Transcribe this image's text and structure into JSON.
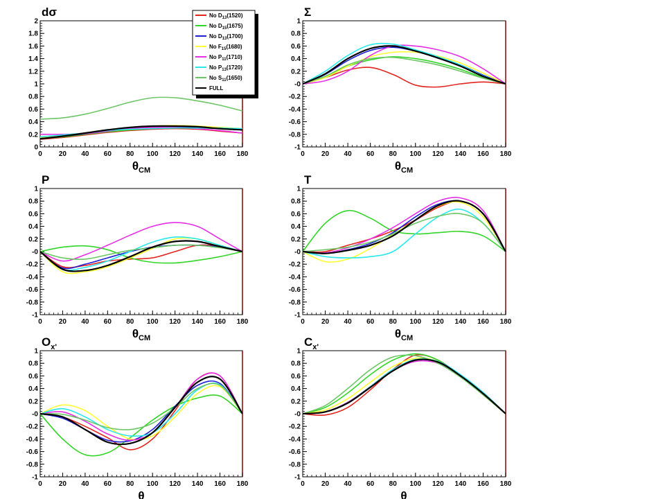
{
  "figure": {
    "background": "#ffffff"
  },
  "legend": {
    "entries": [
      {
        "label": "No D13(1520)",
        "color": "#e3231c"
      },
      {
        "label": "No D15(1675)",
        "color": "#31d626"
      },
      {
        "label": "No D13(1700)",
        "color": "#1f1fd6"
      },
      {
        "label": "No F15(1680)",
        "color": "#ffff33"
      },
      {
        "label": "No P11(1710)",
        "color": "#e52ee5"
      },
      {
        "label": "No P13(1720)",
        "color": "#29e8ec"
      },
      {
        "label": "No S11(1650)",
        "color": "#6cc665"
      },
      {
        "label": "FULL",
        "color": "#000000"
      }
    ]
  },
  "chart_data": [
    {
      "type": "line",
      "panel": "dsigma",
      "title": "dσ",
      "xlabel": "θCM",
      "ylabel": "",
      "xlim": [
        0,
        180
      ],
      "ylim": [
        0,
        2
      ],
      "xticks": [
        "0",
        "20",
        "40",
        "60",
        "80",
        "100",
        "120",
        "140",
        "160",
        "180"
      ],
      "yticks": [
        "0",
        "0.2",
        "0.4",
        "0.6",
        "0.8",
        "1",
        "1.2",
        "1.4",
        "1.6",
        "1.8",
        "2"
      ],
      "x": [
        0,
        20,
        40,
        60,
        80,
        100,
        120,
        140,
        160,
        180
      ],
      "series": [
        {
          "name": "No D13(1520)",
          "values": [
            0.12,
            0.15,
            0.19,
            0.23,
            0.26,
            0.28,
            0.29,
            0.28,
            0.25,
            0.22
          ]
        },
        {
          "name": "No D15(1675)",
          "values": [
            0.13,
            0.16,
            0.2,
            0.24,
            0.27,
            0.29,
            0.3,
            0.3,
            0.29,
            0.27
          ]
        },
        {
          "name": "No D13(1700)",
          "values": [
            0.14,
            0.17,
            0.21,
            0.26,
            0.3,
            0.32,
            0.32,
            0.31,
            0.29,
            0.27
          ]
        },
        {
          "name": "No F15(1680)",
          "values": [
            0.15,
            0.18,
            0.22,
            0.27,
            0.31,
            0.33,
            0.34,
            0.33,
            0.31,
            0.29
          ]
        },
        {
          "name": "No P11(1710)",
          "values": [
            0.2,
            0.2,
            0.21,
            0.25,
            0.29,
            0.31,
            0.31,
            0.29,
            0.26,
            0.22
          ]
        },
        {
          "name": "No P13(1720)",
          "values": [
            0.16,
            0.19,
            0.22,
            0.26,
            0.28,
            0.29,
            0.3,
            0.3,
            0.3,
            0.29
          ]
        },
        {
          "name": "No S11(1650)",
          "values": [
            0.44,
            0.46,
            0.52,
            0.61,
            0.71,
            0.78,
            0.78,
            0.73,
            0.66,
            0.57
          ]
        },
        {
          "name": "FULL",
          "values": [
            0.13,
            0.17,
            0.22,
            0.27,
            0.31,
            0.33,
            0.33,
            0.32,
            0.29,
            0.27
          ]
        }
      ]
    },
    {
      "type": "line",
      "panel": "sigma",
      "title": "Σ",
      "xlabel": "θCM",
      "ylabel": "",
      "xlim": [
        0,
        180
      ],
      "ylim": [
        -1,
        1
      ],
      "xticks": [
        "0",
        "20",
        "40",
        "60",
        "80",
        "100",
        "120",
        "140",
        "160",
        "180"
      ],
      "yticks": [
        "-1",
        "-0.8",
        "-0.6",
        "-0.4",
        "-0.2",
        "-0",
        "0.2",
        "0.4",
        "0.6",
        "0.8",
        "1"
      ],
      "x": [
        0,
        20,
        40,
        60,
        80,
        100,
        120,
        140,
        160,
        180
      ],
      "series": [
        {
          "name": "No D13(1520)",
          "values": [
            0,
            0.1,
            0.22,
            0.26,
            0.15,
            -0.02,
            -0.05,
            0.0,
            0.03,
            0
          ]
        },
        {
          "name": "No D15(1675)",
          "values": [
            0,
            0.12,
            0.28,
            0.38,
            0.43,
            0.4,
            0.33,
            0.23,
            0.1,
            0
          ]
        },
        {
          "name": "No D13(1700)",
          "values": [
            0,
            0.15,
            0.37,
            0.53,
            0.58,
            0.52,
            0.42,
            0.3,
            0.14,
            0
          ]
        },
        {
          "name": "No F15(1680)",
          "values": [
            0,
            0.1,
            0.28,
            0.43,
            0.5,
            0.5,
            0.44,
            0.33,
            0.17,
            0
          ]
        },
        {
          "name": "No P11(1710)",
          "values": [
            0,
            0.05,
            0.2,
            0.45,
            0.6,
            0.6,
            0.54,
            0.43,
            0.24,
            0
          ]
        },
        {
          "name": "No P13(1720)",
          "values": [
            0,
            0.2,
            0.45,
            0.62,
            0.63,
            0.54,
            0.43,
            0.3,
            0.13,
            0
          ]
        },
        {
          "name": "No S11(1650)",
          "values": [
            0,
            0.12,
            0.3,
            0.4,
            0.42,
            0.37,
            0.3,
            0.2,
            0.09,
            0
          ]
        },
        {
          "name": "FULL",
          "values": [
            0,
            0.16,
            0.4,
            0.56,
            0.6,
            0.52,
            0.41,
            0.28,
            0.12,
            0
          ]
        }
      ]
    },
    {
      "type": "line",
      "panel": "P",
      "title": "P",
      "xlabel": "θCM",
      "ylabel": "",
      "xlim": [
        0,
        180
      ],
      "ylim": [
        -1,
        1
      ],
      "xticks": [
        "0",
        "20",
        "40",
        "60",
        "80",
        "100",
        "120",
        "140",
        "160",
        "180"
      ],
      "yticks": [
        "-1",
        "-0.8",
        "-0.6",
        "-0.4",
        "-0.2",
        "-0",
        "0.2",
        "0.4",
        "0.6",
        "0.8",
        "1"
      ],
      "x": [
        0,
        20,
        40,
        60,
        80,
        100,
        120,
        140,
        160,
        180
      ],
      "series": [
        {
          "name": "No D13(1520)",
          "values": [
            0,
            -0.24,
            -0.22,
            -0.15,
            -0.12,
            -0.1,
            0.0,
            0.1,
            0.08,
            0
          ]
        },
        {
          "name": "No D15(1675)",
          "values": [
            0,
            0.07,
            0.09,
            0.03,
            -0.1,
            -0.17,
            -0.18,
            -0.14,
            -0.08,
            0
          ]
        },
        {
          "name": "No D13(1700)",
          "values": [
            0,
            -0.26,
            -0.2,
            -0.1,
            0.0,
            0.07,
            0.1,
            0.1,
            0.07,
            0
          ]
        },
        {
          "name": "No F15(1680)",
          "values": [
            0,
            -0.32,
            -0.32,
            -0.24,
            -0.1,
            0.05,
            0.2,
            0.2,
            0.1,
            0
          ]
        },
        {
          "name": "No P11(1710)",
          "values": [
            0,
            -0.15,
            -0.05,
            0.1,
            0.26,
            0.4,
            0.46,
            0.4,
            0.2,
            0
          ]
        },
        {
          "name": "No P13(1720)",
          "values": [
            0,
            -0.28,
            -0.25,
            -0.15,
            0.0,
            0.15,
            0.23,
            0.2,
            0.1,
            0
          ]
        },
        {
          "name": "No S11(1650)",
          "values": [
            0,
            -0.1,
            -0.12,
            -0.05,
            0.02,
            0.06,
            0.1,
            0.1,
            0.06,
            0
          ]
        },
        {
          "name": "FULL",
          "values": [
            0,
            -0.28,
            -0.3,
            -0.22,
            -0.08,
            0.07,
            0.16,
            0.16,
            0.08,
            0
          ]
        }
      ]
    },
    {
      "type": "line",
      "panel": "T",
      "title": "T",
      "xlabel": "θCM",
      "ylabel": "",
      "xlim": [
        0,
        180
      ],
      "ylim": [
        -1,
        1
      ],
      "xticks": [
        "0",
        "20",
        "40",
        "60",
        "80",
        "100",
        "120",
        "140",
        "160",
        "180"
      ],
      "yticks": [
        "-1",
        "-0.8",
        "-0.6",
        "-0.4",
        "-0.2",
        "-0",
        "0.2",
        "0.4",
        "0.6",
        "0.8",
        "1"
      ],
      "x": [
        0,
        20,
        40,
        60,
        80,
        100,
        120,
        140,
        160,
        180
      ],
      "series": [
        {
          "name": "No D13(1520)",
          "values": [
            0,
            0.0,
            0.1,
            0.2,
            0.33,
            0.5,
            0.7,
            0.8,
            0.6,
            0
          ]
        },
        {
          "name": "No D15(1675)",
          "values": [
            0,
            0.45,
            0.65,
            0.53,
            0.33,
            0.28,
            0.3,
            0.32,
            0.25,
            0
          ]
        },
        {
          "name": "No D13(1700)",
          "values": [
            0,
            -0.03,
            0.03,
            0.13,
            0.3,
            0.55,
            0.75,
            0.8,
            0.6,
            0
          ]
        },
        {
          "name": "No F15(1680)",
          "values": [
            0,
            -0.16,
            -0.12,
            0.05,
            0.27,
            0.5,
            0.72,
            0.78,
            0.55,
            0
          ]
        },
        {
          "name": "No P11(1710)",
          "values": [
            0,
            -0.02,
            0.06,
            0.2,
            0.38,
            0.6,
            0.8,
            0.85,
            0.65,
            0
          ]
        },
        {
          "name": "No P13(1720)",
          "values": [
            0,
            -0.08,
            -0.1,
            -0.08,
            0.0,
            0.28,
            0.55,
            0.67,
            0.45,
            0
          ]
        },
        {
          "name": "No S11(1650)",
          "values": [
            0,
            0.03,
            0.07,
            0.15,
            0.28,
            0.45,
            0.56,
            0.6,
            0.45,
            0
          ]
        },
        {
          "name": "FULL",
          "values": [
            0,
            -0.03,
            0.02,
            0.1,
            0.25,
            0.5,
            0.73,
            0.8,
            0.6,
            0
          ]
        }
      ]
    },
    {
      "type": "line",
      "panel": "Ox",
      "title": "Ox'",
      "xlabel": "θ",
      "ylabel": "",
      "xlim": [
        0,
        180
      ],
      "ylim": [
        -1,
        1
      ],
      "xticks": [
        "0",
        "20",
        "40",
        "60",
        "80",
        "100",
        "120",
        "140",
        "160",
        "180"
      ],
      "yticks": [
        "-1",
        "-0.8",
        "-0.6",
        "-0.4",
        "-0.2",
        "-0",
        "0.2",
        "0.4",
        "0.6",
        "0.8",
        "1"
      ],
      "x": [
        0,
        20,
        40,
        60,
        80,
        100,
        120,
        140,
        160,
        180
      ],
      "series": [
        {
          "name": "No D13(1520)",
          "values": [
            0,
            -0.05,
            -0.2,
            -0.38,
            -0.57,
            -0.4,
            0.05,
            0.55,
            0.6,
            0
          ]
        },
        {
          "name": "No D15(1675)",
          "values": [
            0,
            -0.4,
            -0.65,
            -0.62,
            -0.38,
            -0.1,
            0.12,
            0.25,
            0.28,
            0
          ]
        },
        {
          "name": "No D13(1700)",
          "values": [
            0,
            -0.07,
            -0.25,
            -0.42,
            -0.43,
            -0.25,
            0.12,
            0.45,
            0.48,
            0
          ]
        },
        {
          "name": "No F15(1680)",
          "values": [
            0,
            0.14,
            0.05,
            -0.2,
            -0.4,
            -0.35,
            -0.05,
            0.32,
            0.43,
            0
          ]
        },
        {
          "name": "No P11(1710)",
          "values": [
            0,
            0.03,
            -0.12,
            -0.32,
            -0.42,
            -0.3,
            0.1,
            0.55,
            0.6,
            0
          ]
        },
        {
          "name": "No P13(1720)",
          "values": [
            0,
            0.08,
            -0.05,
            -0.25,
            -0.35,
            -0.3,
            0.0,
            0.38,
            0.46,
            0
          ]
        },
        {
          "name": "No S11(1650)",
          "values": [
            0,
            -0.01,
            -0.1,
            -0.22,
            -0.25,
            -0.15,
            0.1,
            0.4,
            0.45,
            0
          ]
        },
        {
          "name": "FULL",
          "values": [
            0,
            -0.05,
            -0.25,
            -0.45,
            -0.47,
            -0.3,
            0.1,
            0.5,
            0.55,
            0
          ]
        }
      ]
    },
    {
      "type": "line",
      "panel": "Cx",
      "title": "Cx'",
      "xlabel": "θ",
      "ylabel": "",
      "xlim": [
        0,
        180
      ],
      "ylim": [
        -1,
        1
      ],
      "xticks": [
        "0",
        "20",
        "40",
        "60",
        "80",
        "100",
        "120",
        "140",
        "160",
        "180"
      ],
      "yticks": [
        "-1",
        "-0.8",
        "-0.6",
        "-0.4",
        "-0.2",
        "-0",
        "0.2",
        "0.4",
        "0.6",
        "0.8",
        "1"
      ],
      "x": [
        0,
        20,
        40,
        60,
        80,
        100,
        120,
        140,
        160,
        180
      ],
      "series": [
        {
          "name": "No D13(1520)",
          "values": [
            0,
            -0.02,
            0.1,
            0.38,
            0.7,
            0.93,
            0.85,
            0.6,
            0.3,
            0
          ]
        },
        {
          "name": "No D15(1675)",
          "values": [
            0,
            0.1,
            0.33,
            0.62,
            0.85,
            0.95,
            0.85,
            0.6,
            0.3,
            0
          ]
        },
        {
          "name": "No D13(1700)",
          "values": [
            0,
            0.03,
            0.18,
            0.43,
            0.7,
            0.85,
            0.82,
            0.6,
            0.32,
            0
          ]
        },
        {
          "name": "No F15(1680)",
          "values": [
            0,
            0.06,
            0.24,
            0.5,
            0.75,
            0.88,
            0.83,
            0.6,
            0.3,
            0
          ]
        },
        {
          "name": "No P11(1710)",
          "values": [
            0,
            0.03,
            0.18,
            0.42,
            0.68,
            0.83,
            0.8,
            0.6,
            0.32,
            0
          ]
        },
        {
          "name": "No P13(1720)",
          "values": [
            0,
            0.03,
            0.17,
            0.43,
            0.7,
            0.86,
            0.83,
            0.62,
            0.34,
            0
          ]
        },
        {
          "name": "No S11(1650)",
          "values": [
            0,
            0.13,
            0.4,
            0.7,
            0.9,
            0.92,
            0.8,
            0.58,
            0.3,
            0
          ]
        },
        {
          "name": "FULL",
          "values": [
            0,
            0.03,
            0.17,
            0.42,
            0.68,
            0.85,
            0.82,
            0.6,
            0.32,
            0
          ]
        }
      ]
    }
  ]
}
